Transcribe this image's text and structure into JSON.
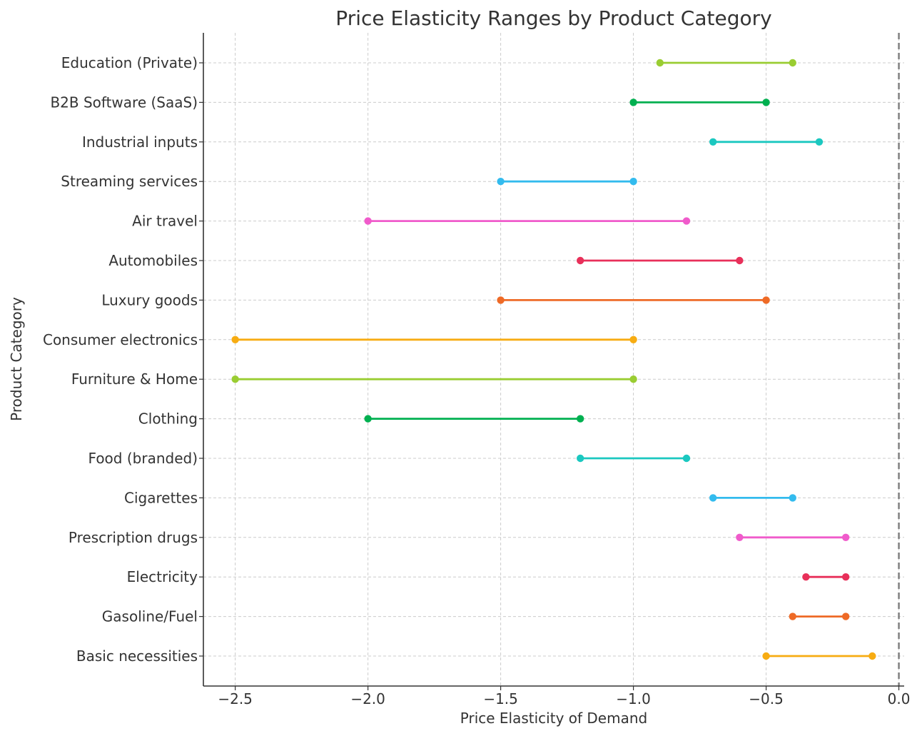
{
  "chart_data": {
    "type": "dumbbell",
    "title": "Price Elasticity Ranges by Product Category",
    "xlabel": "Price Elasticity of Demand",
    "ylabel": "Product Category",
    "xlim": [
      -2.62,
      0.02
    ],
    "xticks": [
      -2.5,
      -2.0,
      -1.5,
      -1.0,
      -0.5,
      0.0
    ],
    "xtick_labels": [
      "−2.5",
      "−2.0",
      "−1.5",
      "−1.0",
      "−0.5",
      "0.0"
    ],
    "grid": true,
    "reference_line_x": 0.0,
    "ranges": [
      {
        "category": "Education (Private)",
        "min": -0.9,
        "max": -0.4,
        "color": "#9acd32"
      },
      {
        "category": "B2B Software (SaaS)",
        "min": -1.0,
        "max": -0.5,
        "color": "#00b050"
      },
      {
        "category": "Industrial inputs",
        "min": -0.7,
        "max": -0.3,
        "color": "#1bc8c0"
      },
      {
        "category": "Streaming services",
        "min": -1.5,
        "max": -1.0,
        "color": "#33bbee"
      },
      {
        "category": "Air travel",
        "min": -2.0,
        "max": -0.8,
        "color": "#f05bcb"
      },
      {
        "category": "Automobiles",
        "min": -1.2,
        "max": -0.6,
        "color": "#e8305a"
      },
      {
        "category": "Luxury goods",
        "min": -1.5,
        "max": -0.5,
        "color": "#ee6a26"
      },
      {
        "category": "Consumer electronics",
        "min": -2.5,
        "max": -1.0,
        "color": "#f7ac12"
      },
      {
        "category": "Furniture & Home",
        "min": -2.5,
        "max": -1.0,
        "color": "#9acd32"
      },
      {
        "category": "Clothing",
        "min": -2.0,
        "max": -1.2,
        "color": "#00b050"
      },
      {
        "category": "Food (branded)",
        "min": -1.2,
        "max": -0.8,
        "color": "#1bc8c0"
      },
      {
        "category": "Cigarettes",
        "min": -0.7,
        "max": -0.4,
        "color": "#33bbee"
      },
      {
        "category": "Prescription drugs",
        "min": -0.6,
        "max": -0.2,
        "color": "#f05bcb"
      },
      {
        "category": "Electricity",
        "min": -0.35,
        "max": -0.2,
        "color": "#e8305a"
      },
      {
        "category": "Gasoline/Fuel",
        "min": -0.4,
        "max": -0.2,
        "color": "#ee6a26"
      },
      {
        "category": "Basic necessities",
        "min": -0.5,
        "max": -0.1,
        "color": "#f7ac12"
      }
    ]
  }
}
